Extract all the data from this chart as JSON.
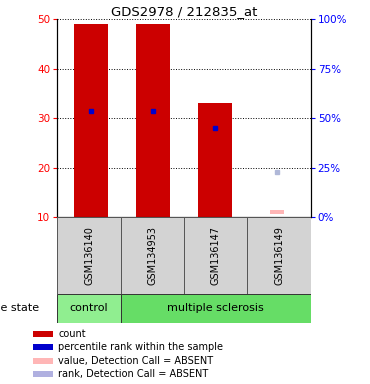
{
  "title": "GDS2978 / 212835_at",
  "samples": [
    "GSM136140",
    "GSM134953",
    "GSM136147",
    "GSM136149"
  ],
  "bar_bottoms": [
    10,
    10,
    10,
    10
  ],
  "bar_tops": [
    49,
    49,
    33,
    10
  ],
  "bar_colors": [
    "#cc0000",
    "#cc0000",
    "#cc0000",
    "#cc0000"
  ],
  "rank_values": [
    31.5,
    31.5,
    28,
    null
  ],
  "rank_absent": [
    null,
    null,
    null,
    19
  ],
  "value_absent": [
    null,
    null,
    null,
    11
  ],
  "ylim_left": [
    10,
    50
  ],
  "ylim_right": [
    0,
    100
  ],
  "yticks_left": [
    10,
    20,
    30,
    40,
    50
  ],
  "yticks_right": [
    0,
    25,
    50,
    75,
    100
  ],
  "ytick_labels_right": [
    "0%",
    "25%",
    "50%",
    "75%",
    "100%"
  ],
  "group_control_color": "#90ee90",
  "group_ms_color": "#66dd66",
  "gray_box_color": "#d3d3d3",
  "disease_label": "disease state",
  "bar_width": 0.55,
  "x_positions": [
    0,
    1,
    2,
    3
  ],
  "background_color": "#ffffff",
  "legend_colors": [
    "#cc0000",
    "#0000cc",
    "#ffb6b6",
    "#b0b0e0"
  ],
  "legend_labels": [
    "count",
    "percentile rank within the sample",
    "value, Detection Call = ABSENT",
    "rank, Detection Call = ABSENT"
  ]
}
